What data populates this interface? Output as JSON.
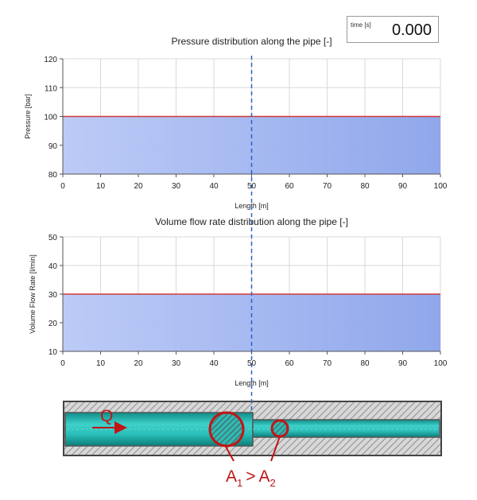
{
  "time_display": {
    "label": "time [s]",
    "value": "0.000"
  },
  "chart_data": [
    {
      "type": "area",
      "title": "Pressure distribution along the pipe [-]",
      "xlabel": "Length [m]",
      "ylabel": "Pressure [bar]",
      "xlim": [
        0,
        100
      ],
      "ylim": [
        80,
        120
      ],
      "x_ticks": [
        "0",
        "10",
        "20",
        "30",
        "40",
        "50",
        "60",
        "70",
        "80",
        "90",
        "100"
      ],
      "y_ticks": [
        "80",
        "90",
        "100",
        "110",
        "120"
      ],
      "x": [
        0,
        100
      ],
      "y": [
        100,
        100
      ],
      "grid": true,
      "marker_x": 50,
      "colors": {
        "line": "#d23a3a",
        "fill": "#9fb3f0"
      }
    },
    {
      "type": "area",
      "title": "Volume flow rate distribution along the pipe [-]",
      "xlabel": "Length [m]",
      "ylabel": "Volume Flow Rate [l/min]",
      "xlim": [
        0,
        100
      ],
      "ylim": [
        10,
        50
      ],
      "x_ticks": [
        "0",
        "10",
        "20",
        "30",
        "40",
        "50",
        "60",
        "70",
        "80",
        "90",
        "100"
      ],
      "y_ticks": [
        "10",
        "20",
        "30",
        "40",
        "50"
      ],
      "x": [
        0,
        100
      ],
      "y": [
        30,
        30
      ],
      "grid": true,
      "marker_x": 50,
      "colors": {
        "line": "#d23a3a",
        "fill": "#9fb3f0"
      }
    }
  ],
  "pipe_diagram": {
    "flow_label": "Q",
    "area_label": "A",
    "area1_sub": "1",
    "comparator": ">",
    "area2_sub": "2",
    "colors": {
      "fluid": "#1fb5b0",
      "wall": "#d0d0d0",
      "annotation": "#c01515"
    }
  }
}
